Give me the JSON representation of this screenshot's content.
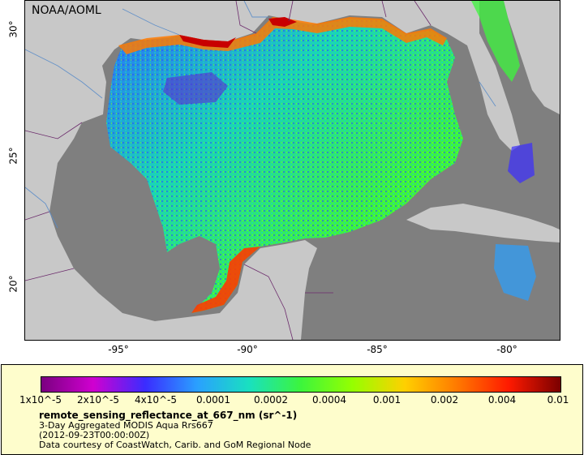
{
  "map": {
    "agency": "NOAA/AOML",
    "x_ticks": [
      "-95°",
      "-90°",
      "-85°",
      "-80°"
    ],
    "y_ticks": [
      "30°",
      "25°",
      "20°"
    ]
  },
  "legend": {
    "colorbar_labels": [
      "1x10^-5",
      "2x10^-5",
      "4x10^-5",
      "0.0001",
      "0.0002",
      "0.0004",
      "0.001",
      "0.002",
      "0.004",
      "0.01"
    ],
    "variable_title": "remote_sensing_reflectance_at_667_nm (sr^-1)",
    "description": "3-Day Aggregated MODIS Aqua Rrs667",
    "time": "(2012-09-23T00:00:00Z)",
    "credit": "Data courtesy of CoastWatch, Carib. and GoM Regional Node"
  },
  "colors": {
    "land": "#c8c8c8",
    "no_data": "#7f7f7f",
    "legend_bg": "#fefdcc",
    "colormap": [
      "#7a0080",
      "#d000d0",
      "#3a2cff",
      "#2aa0ff",
      "#19e0c0",
      "#3cf53c",
      "#96ff00",
      "#ffd000",
      "#ff7a00",
      "#ff1a00",
      "#7a0000"
    ]
  }
}
